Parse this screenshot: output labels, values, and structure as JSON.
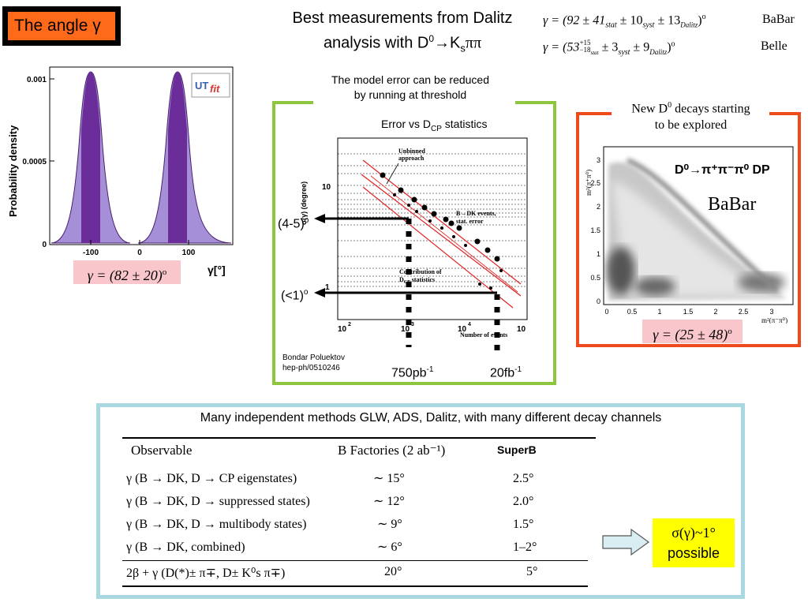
{
  "title": "The angle γ",
  "header": {
    "line1": "Best measurements from Dalitz",
    "line2_prefix": "analysis with D",
    "line2_sup": "0",
    "line2_arrow": "→",
    "line2_k": "K",
    "line2_ksub": "s",
    "line2_suffix": "ππ"
  },
  "measurements": [
    {
      "formula": "γ = (92 ± 41",
      "stat": "stat",
      "mid1": " ± 10",
      "syst": "syst",
      "mid2": " ± 13",
      "dal": "Dalitz",
      "end": ")",
      "deg": "o",
      "exp": "BaBar"
    },
    {
      "formula": "γ = (53",
      "sup": "+15",
      "sub": "−18",
      "stat": "stat",
      "mid1": " ± 3",
      "syst": "syst",
      "mid2": " ± 9",
      "dal": "Dalitz",
      "end": ")",
      "deg": "o",
      "exp": "Belle"
    }
  ],
  "left_plot": {
    "ylabel": "Probability density",
    "yticks": [
      "0.001",
      "0.0005",
      "0"
    ],
    "xticks": [
      "-100",
      "0",
      "100"
    ],
    "xlabel": "γ[°]",
    "logo_ut": "UT",
    "logo_fit": "fit",
    "result": "γ = (82 ± 20)",
    "result_deg": "o"
  },
  "middle": {
    "note1": "The model error can be reduced",
    "note2": "by running at threshold",
    "plot_title_prefix": "Error vs D",
    "plot_title_sub": "CP",
    "plot_title_suffix": " statistics",
    "ylabel": "σ(γ) (degree)",
    "ytick_10": "10",
    "ytick_1": "1",
    "xticks": [
      "10",
      "10",
      "10",
      "10"
    ],
    "xtick_exp": [
      "2",
      "3",
      "4"
    ],
    "xlabel": "Number of events",
    "label_unbinned1": "Unbinned",
    "label_unbinned2": "approach",
    "label_bdk1": "B→DK events,",
    "label_bdk2": "stat. error",
    "label_contrib1": "Contribution of",
    "label_contrib2": "D",
    "label_contrib2_sub": "CP",
    "label_contrib2_suffix": " statistics",
    "arrow1_label": "(4-5)",
    "arrow2_label": "(<1)",
    "deg": "o",
    "credit1": "Bondar Poluektov",
    "credit2": "hep-ph/0510246",
    "lumi1": "750pb",
    "lumi1_sup": "-1",
    "lumi2": "20fb",
    "lumi2_sup": "-1"
  },
  "right": {
    "note_prefix": "New D",
    "note_sup": "0",
    "note_suffix": " decays starting",
    "note2": "to be explored",
    "dp_title": "D⁰→π⁺π⁻π⁰ DP",
    "babar": "BaBar",
    "ylabel": "m²(π⁺π⁰)",
    "xlabel": "m²(π⁻π⁰)",
    "yticks": [
      "3",
      "2.5",
      "2",
      "1.5",
      "1",
      "0.5",
      "0"
    ],
    "xticks": [
      "0",
      "0.5",
      "1",
      "1.5",
      "2",
      "2.5",
      "3"
    ],
    "result": "γ = (25 ± 48)",
    "result_deg": "o"
  },
  "bottom": {
    "heading": "Many independent methods GLW, ADS, Dalitz, with many different decay channels",
    "col1": "Observable",
    "col2": "B Factories (2 ab⁻¹)",
    "col3": "SuperB",
    "rows": [
      {
        "obs": "γ (B → DK, D → CP eigenstates)",
        "bf": "∼ 15°",
        "sb": "2.5°"
      },
      {
        "obs": "γ (B → DK, D → suppressed states)",
        "bf": "∼ 12°",
        "sb": "2.0°"
      },
      {
        "obs": "γ (B → DK, D → multibody states)",
        "bf": "∼ 9°",
        "sb": "1.5°"
      },
      {
        "obs": "γ (B → DK, combined)",
        "bf": "∼ 6°",
        "sb": "1–2°"
      }
    ],
    "last_row": {
      "obs": "2β + γ (D(*)± π∓, D± K⁰s π∓)",
      "bf": "20°",
      "sb": "5°"
    },
    "badge1": "σ(γ)~1°",
    "badge2": "possible"
  },
  "colors": {
    "purple": "#6a2d9a",
    "lavender": "#a58fd6",
    "green": "#8ec63f",
    "orange": "#ee4a1e",
    "teal": "#a9d8e1",
    "yellow": "#ffff00",
    "pink": "#f9c6cc"
  }
}
